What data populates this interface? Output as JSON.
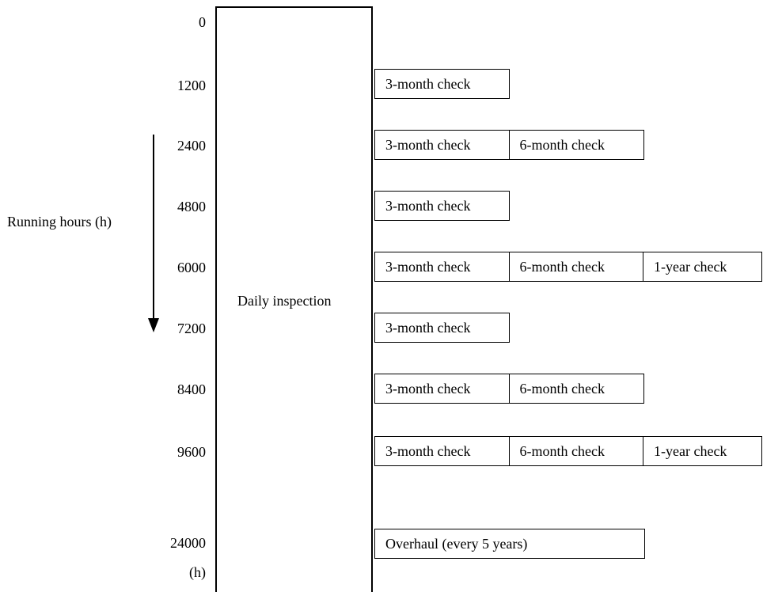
{
  "axis_title": "Running hours (h)",
  "unit_label": "(h)",
  "daily_label": "Daily inspection",
  "hours": [
    "0",
    "1200",
    "2400",
    "4800",
    "6000",
    "7200",
    "8400",
    "9600",
    "24000"
  ],
  "rows": [
    {
      "hour": "1200",
      "checks": [
        "3-month check"
      ]
    },
    {
      "hour": "2400",
      "checks": [
        "3-month check",
        "6-month check"
      ]
    },
    {
      "hour": "4800",
      "checks": [
        "3-month check"
      ]
    },
    {
      "hour": "6000",
      "checks": [
        "3-month check",
        "6-month check",
        "1-year check"
      ]
    },
    {
      "hour": "7200",
      "checks": [
        "3-month check"
      ]
    },
    {
      "hour": "8400",
      "checks": [
        "3-month check",
        "6-month check"
      ]
    },
    {
      "hour": "9600",
      "checks": [
        "3-month check",
        "6-month check",
        "1-year check"
      ]
    },
    {
      "hour": "24000",
      "checks": [
        "Overhaul (every 5 years)"
      ]
    }
  ]
}
